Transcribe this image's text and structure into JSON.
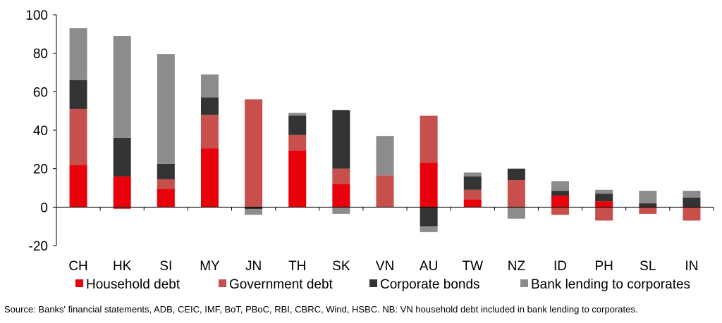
{
  "chart_data": {
    "type": "bar",
    "stacked": true,
    "categories": [
      "CH",
      "HK",
      "SI",
      "MY",
      "JN",
      "TH",
      "SK",
      "VN",
      "AU",
      "TW",
      "NZ",
      "ID",
      "PH",
      "SL",
      "IN"
    ],
    "series": [
      {
        "name": "Household debt",
        "color": "#e8000b",
        "values": [
          22,
          16,
          9.5,
          30.5,
          0,
          29.5,
          12,
          0,
          23,
          4,
          0,
          6,
          3,
          0,
          0
        ]
      },
      {
        "name": "Government debt",
        "color": "#c8504c",
        "values": [
          29,
          -1,
          5,
          17.5,
          56,
          8,
          8,
          16.5,
          24.5,
          5,
          14,
          -4,
          -7,
          -3.5,
          -7
        ]
      },
      {
        "name": "Corporate bonds",
        "color": "#333333",
        "values": [
          15,
          20,
          8,
          9,
          -1,
          10,
          30.5,
          0,
          -10,
          7,
          6,
          2.5,
          4,
          2,
          5
        ]
      },
      {
        "name": "Bank lending to corporates",
        "color": "#8c8c8c",
        "values": [
          27,
          53,
          57,
          12,
          -3,
          1.5,
          -3.5,
          20.5,
          -3,
          2,
          -6,
          5,
          2,
          6.5,
          3.5
        ]
      }
    ],
    "ylim": [
      -20,
      100
    ],
    "yticks": [
      -20,
      0,
      20,
      40,
      60,
      80,
      100
    ],
    "legend_position": "bottom",
    "grid": false,
    "xlabel": "",
    "ylabel": "",
    "title": ""
  },
  "source_note": "Source: Banks' financial statements, ADB, CEIC, IMF, BoT, PBoC, RBI, CBRC, Wind, HSBC. NB: VN household debt included in bank lending to corporates."
}
